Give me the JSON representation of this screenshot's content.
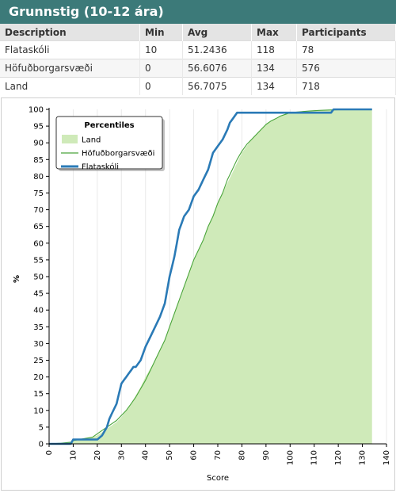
{
  "header": {
    "title": "Grunnstig (10-12 ára)"
  },
  "table": {
    "columns": [
      "Description",
      "Min",
      "Avg",
      "Max",
      "Participants"
    ],
    "rows": [
      [
        "Flataskóli",
        "10",
        "51.2436",
        "118",
        "78"
      ],
      [
        "Höfuðborgarsvæði",
        "0",
        "56.6076",
        "134",
        "576"
      ],
      [
        "Land",
        "0",
        "56.7075",
        "134",
        "718"
      ]
    ]
  },
  "chart_data": {
    "type": "line",
    "xlabel": "Score",
    "ylabel": "%",
    "xlim": [
      0,
      140
    ],
    "ylim": [
      0,
      100
    ],
    "xticks": [
      0,
      10,
      20,
      30,
      40,
      50,
      60,
      70,
      80,
      90,
      100,
      110,
      120,
      130,
      140
    ],
    "yticks": [
      0,
      5,
      10,
      15,
      20,
      25,
      30,
      35,
      40,
      45,
      50,
      55,
      60,
      65,
      70,
      75,
      80,
      85,
      90,
      95,
      100
    ],
    "grid": "vertical",
    "legend": {
      "title": "Percentiles",
      "placement": "top-left"
    },
    "series": [
      {
        "name": "Land",
        "style": "area",
        "color": "#cfeab9",
        "x": [
          0,
          5,
          9,
          10,
          14,
          18,
          20,
          22,
          24,
          26,
          28,
          30,
          32,
          34,
          36,
          38,
          40,
          42,
          44,
          46,
          48,
          50,
          52,
          54,
          56,
          58,
          60,
          62,
          64,
          66,
          68,
          70,
          72,
          74,
          76,
          78,
          80,
          82,
          84,
          86,
          88,
          90,
          92,
          94,
          96,
          98,
          100,
          104,
          108,
          112,
          116,
          120,
          124,
          128,
          132,
          134
        ],
        "y": [
          0,
          0.2,
          0.6,
          1,
          1.5,
          2,
          2.5,
          3.5,
          4.5,
          5.5,
          6.5,
          8,
          10,
          12,
          14.5,
          17,
          20,
          22.5,
          25,
          28,
          31,
          35,
          39,
          43,
          47,
          51,
          55,
          58,
          61,
          65,
          68,
          72,
          75,
          78,
          81,
          84,
          87,
          89,
          91,
          92.5,
          94,
          95.5,
          96.5,
          97.2,
          98,
          98.5,
          99,
          99.3,
          99.5,
          99.7,
          99.8,
          99.9,
          100,
          100,
          100,
          100
        ]
      },
      {
        "name": "Höfuðborgarsvæði",
        "style": "line",
        "color": "#4aa53a",
        "x": [
          0,
          5,
          9,
          10,
          14,
          18,
          20,
          22,
          24,
          26,
          28,
          30,
          32,
          34,
          36,
          38,
          40,
          42,
          44,
          46,
          48,
          50,
          52,
          54,
          56,
          58,
          60,
          62,
          64,
          66,
          68,
          70,
          72,
          74,
          76,
          78,
          80,
          82,
          84,
          86,
          88,
          90,
          92,
          94,
          96,
          98,
          100,
          104,
          108,
          112,
          116,
          120,
          124,
          128,
          132,
          134
        ],
        "y": [
          0,
          0.2,
          0.5,
          1,
          1.5,
          2,
          3,
          4,
          5,
          6,
          7,
          8.5,
          10,
          12,
          14,
          16.5,
          19,
          22,
          25,
          28,
          31,
          35,
          39,
          43,
          47,
          51,
          55,
          58,
          61,
          65,
          68,
          72,
          75,
          79,
          82,
          85,
          87.5,
          89.5,
          91,
          92.5,
          94,
          95.5,
          96.5,
          97.2,
          98,
          98.5,
          99,
          99.3,
          99.5,
          99.7,
          99.8,
          99.9,
          100,
          100,
          100,
          100
        ]
      },
      {
        "name": "Flataskóli",
        "style": "line",
        "color": "#2a7ab6",
        "x": [
          0,
          9,
          10,
          20,
          22,
          24,
          25,
          26,
          28,
          29,
          30,
          31,
          32,
          33,
          34,
          35,
          36,
          38,
          40,
          42,
          44,
          46,
          48,
          50,
          51,
          52,
          53,
          54,
          55,
          56,
          58,
          60,
          62,
          64,
          66,
          68,
          70,
          72,
          74,
          75,
          76,
          78,
          79,
          80,
          90,
          100,
          117,
          118,
          134
        ],
        "y": [
          0,
          0,
          1.3,
          1.3,
          2.5,
          5,
          7.5,
          9,
          12,
          15,
          18,
          19,
          20,
          21,
          22,
          23,
          23,
          25,
          29,
          32,
          35,
          38,
          42,
          50,
          53,
          56,
          60,
          64,
          66,
          68,
          70,
          74,
          76,
          79,
          82,
          87,
          89,
          91,
          94,
          96,
          97,
          99,
          99,
          99,
          99,
          99,
          99,
          100,
          100
        ]
      }
    ]
  }
}
